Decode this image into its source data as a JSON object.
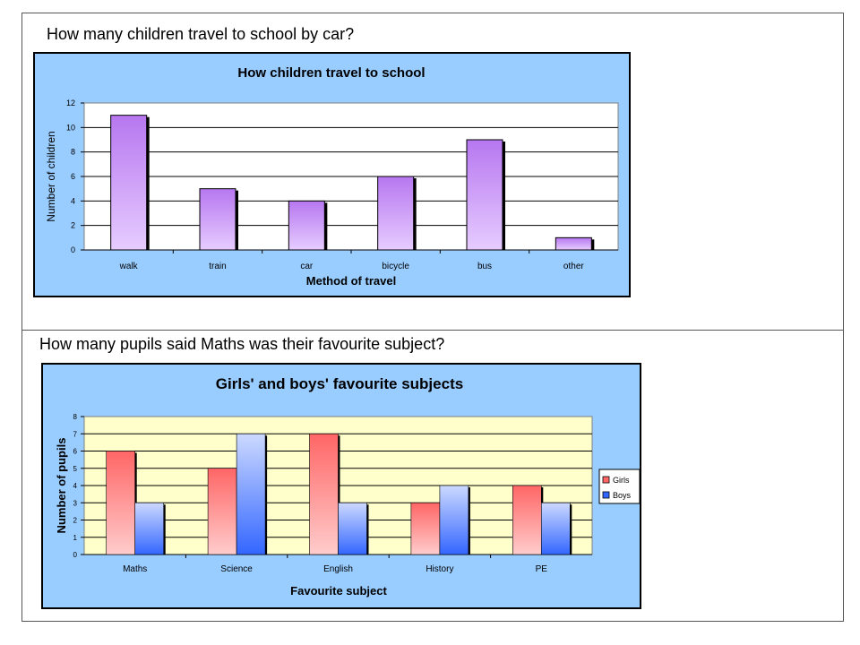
{
  "questions": {
    "q1": "How many children travel to school by car?",
    "q2": "How many pupils said Maths was their favourite subject?"
  },
  "colors": {
    "chart_bg": "#99ccff",
    "plot1_bg": "#ffffff",
    "plot2_bg": "#ffffcc",
    "purple_top": "#b777f0",
    "purple_bottom": "#e6ccff",
    "girls_top": "#ff6666",
    "girls_bottom": "#ffcccc",
    "boys_top": "#3366ff",
    "boys_bottom": "#ccd9ff"
  },
  "chart_data": [
    {
      "type": "bar",
      "title": "How children travel to school",
      "xlabel": "Method of travel",
      "ylabel": "Number of children",
      "categories": [
        "walk",
        "train",
        "car",
        "bicycle",
        "bus",
        "other"
      ],
      "values": [
        11,
        5,
        4,
        6,
        9,
        1
      ],
      "ylim": [
        0,
        12
      ],
      "yticks": [
        0,
        2,
        4,
        6,
        8,
        10,
        12
      ],
      "grid": true,
      "legend": "none"
    },
    {
      "type": "bar",
      "title": "Girls' and boys' favourite subjects",
      "xlabel": "Favourite subject",
      "ylabel": "Number of pupils",
      "categories": [
        "Maths",
        "Science",
        "English",
        "History",
        "PE"
      ],
      "series": [
        {
          "name": "Girls",
          "values": [
            6,
            5,
            7,
            3,
            4
          ]
        },
        {
          "name": "Boys",
          "values": [
            3,
            7,
            3,
            4,
            3
          ]
        }
      ],
      "ylim": [
        0,
        8
      ],
      "yticks": [
        0,
        1,
        2,
        3,
        4,
        5,
        6,
        7,
        8
      ],
      "grid": true,
      "legend": "right"
    }
  ]
}
